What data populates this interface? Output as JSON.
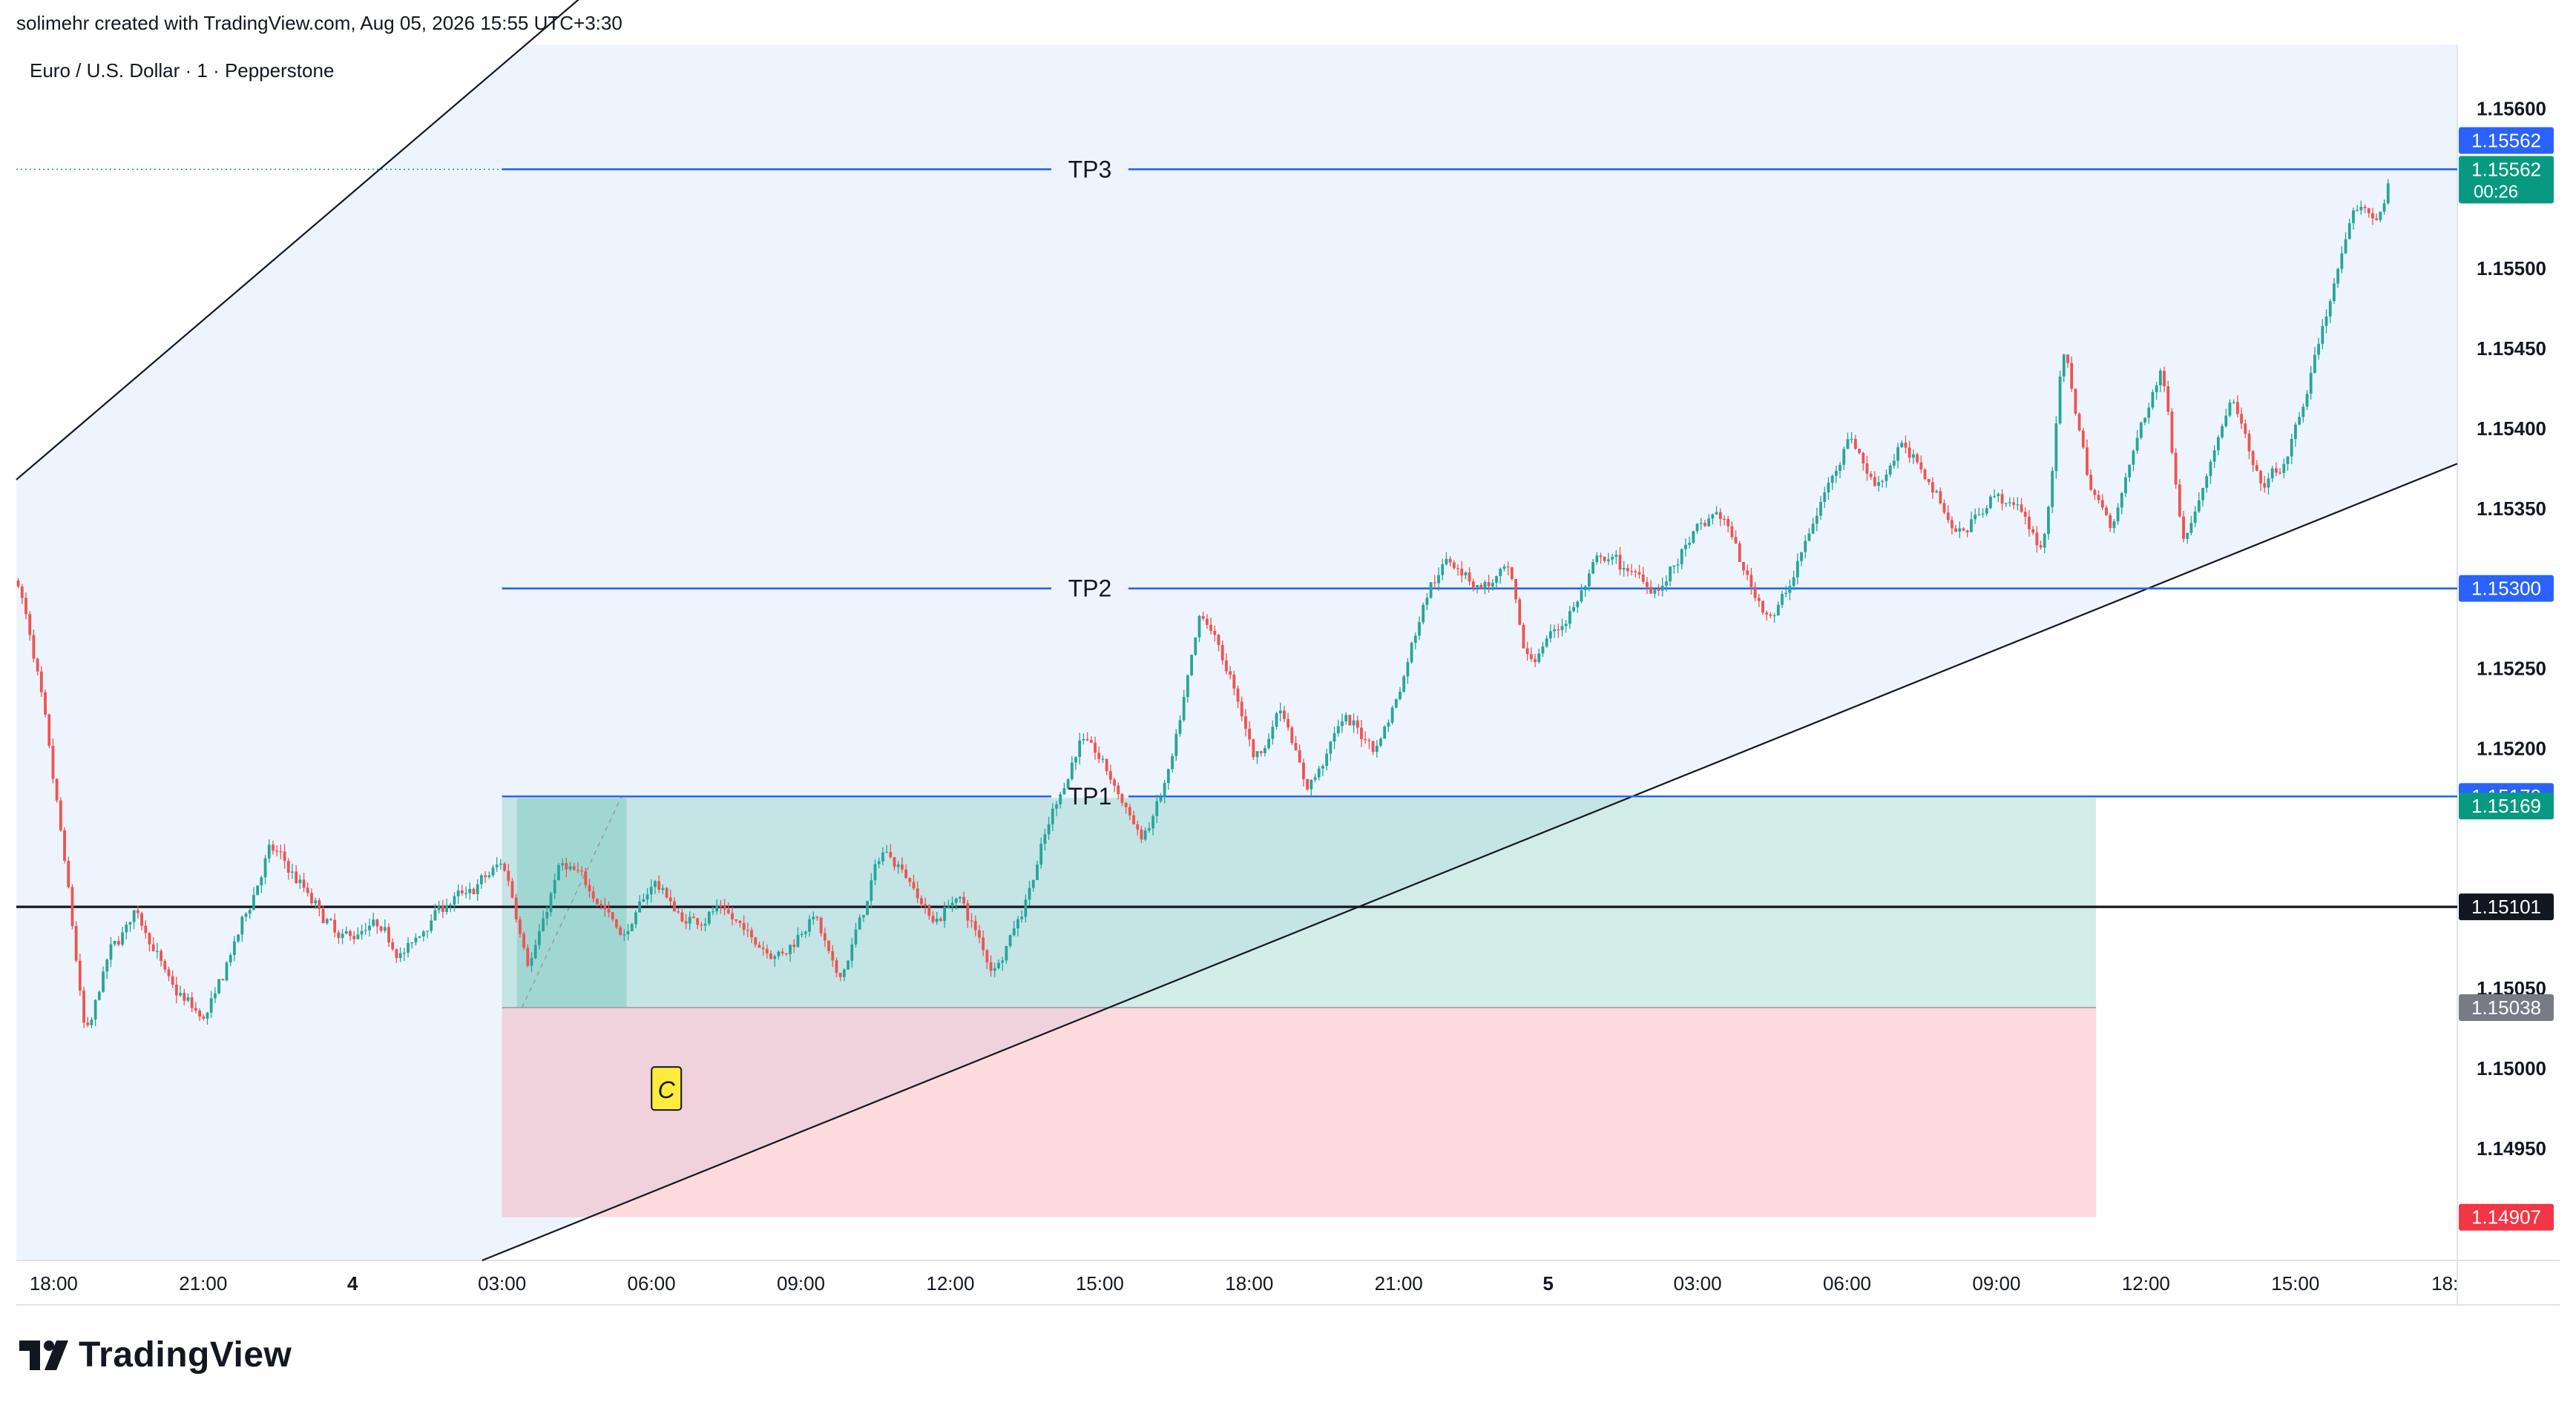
{
  "header": {
    "attribution": "solimehr created with TradingView.com, Aug 05, 2026 15:55 UTC+3:30"
  },
  "symbol": {
    "title": "Euro / U.S. Dollar · 1 · Pepperstone"
  },
  "brand": {
    "name": "TradingView",
    "logo_icon": "tradingview-logo-icon"
  },
  "colors": {
    "candle_up": "#26a69a",
    "candle_down": "#ef5350",
    "tp_line": "#2962ff",
    "stop_zone": "#f23645",
    "target_zone": "#089981",
    "channel_bg": "#eef4fd",
    "last_price": "#089981"
  },
  "chart_data": {
    "type": "candlestick",
    "symbol": "Euro / U.S. Dollar",
    "interval": "1",
    "broker": "Pepperstone",
    "ylim": [
      1.1488,
      1.1564
    ],
    "y_ticks": [
      "1.15600",
      "1.15500",
      "1.15450",
      "1.15400",
      "1.15350",
      "1.15250",
      "1.15200",
      "1.15050",
      "1.15000",
      "1.14950"
    ],
    "x_ticks": [
      "18:00",
      "21:00",
      "4",
      "03:00",
      "06:00",
      "09:00",
      "12:00",
      "15:00",
      "18:00",
      "21:00",
      "5",
      "03:00",
      "06:00",
      "09:00",
      "12:00",
      "15:00",
      "18:"
    ],
    "x_range_hours": [
      -0.75,
      48.25
    ],
    "price_path": [
      [
        -0.75,
        1.15305
      ],
      [
        -0.3,
        1.1523
      ],
      [
        0.2,
        1.1512
      ],
      [
        0.6,
        1.1501
      ],
      [
        1.0,
        1.1507
      ],
      [
        1.6,
        1.151
      ],
      [
        2.3,
        1.1505
      ],
      [
        3.0,
        1.1503
      ],
      [
        3.6,
        1.1508
      ],
      [
        4.3,
        1.1514
      ],
      [
        5.0,
        1.1511
      ],
      [
        5.7,
        1.1508
      ],
      [
        6.4,
        1.1509
      ],
      [
        7.0,
        1.1507
      ],
      [
        7.6,
        1.151
      ],
      [
        8.3,
        1.1511
      ],
      [
        9.0,
        1.1513
      ],
      [
        9.5,
        1.1506
      ],
      [
        10.1,
        1.1513
      ],
      [
        10.8,
        1.1511
      ],
      [
        11.4,
        1.1508
      ],
      [
        12.0,
        1.1512
      ],
      [
        12.6,
        1.1509
      ],
      [
        13.3,
        1.151
      ],
      [
        14.0,
        1.1508
      ],
      [
        14.6,
        1.1507
      ],
      [
        15.2,
        1.151
      ],
      [
        15.7,
        1.1505
      ],
      [
        16.1,
        1.1509
      ],
      [
        16.6,
        1.1514
      ],
      [
        17.1,
        1.1512
      ],
      [
        17.6,
        1.1509
      ],
      [
        18.1,
        1.1511
      ],
      [
        18.8,
        1.1506
      ],
      [
        19.4,
        1.151
      ],
      [
        20.0,
        1.1516
      ],
      [
        20.6,
        1.1521
      ],
      [
        21.2,
        1.1518
      ],
      [
        21.8,
        1.1514
      ],
      [
        22.4,
        1.1519
      ],
      [
        23.0,
        1.1529
      ],
      [
        23.6,
        1.1524
      ],
      [
        24.1,
        1.1519
      ],
      [
        24.6,
        1.1523
      ],
      [
        25.1,
        1.1517
      ],
      [
        25.8,
        1.1522
      ],
      [
        26.5,
        1.152
      ],
      [
        27.0,
        1.1524
      ],
      [
        27.5,
        1.153
      ],
      [
        28.0,
        1.1532
      ],
      [
        28.6,
        1.153
      ],
      [
        29.2,
        1.1531
      ],
      [
        29.5,
        1.1525
      ],
      [
        30.0,
        1.1527
      ],
      [
        30.5,
        1.1529
      ],
      [
        31.0,
        1.1532
      ],
      [
        31.6,
        1.1531
      ],
      [
        32.2,
        1.153
      ],
      [
        32.8,
        1.1533
      ],
      [
        33.4,
        1.1535
      ],
      [
        34.0,
        1.153
      ],
      [
        34.5,
        1.1528
      ],
      [
        35.0,
        1.1532
      ],
      [
        35.5,
        1.1536
      ],
      [
        36.0,
        1.154
      ],
      [
        36.5,
        1.1536
      ],
      [
        37.0,
        1.1539
      ],
      [
        37.6,
        1.1537
      ],
      [
        38.2,
        1.1533
      ],
      [
        38.8,
        1.1536
      ],
      [
        39.4,
        1.1535
      ],
      [
        39.9,
        1.1532
      ],
      [
        40.3,
        1.1546
      ],
      [
        40.8,
        1.1536
      ],
      [
        41.3,
        1.1534
      ],
      [
        41.8,
        1.154
      ],
      [
        42.3,
        1.1544
      ],
      [
        42.7,
        1.1532
      ],
      [
        43.2,
        1.1538
      ],
      [
        43.7,
        1.1542
      ],
      [
        44.2,
        1.1536
      ],
      [
        44.8,
        1.1538
      ],
      [
        45.3,
        1.1544
      ],
      [
        45.8,
        1.155
      ],
      [
        46.2,
        1.1554
      ],
      [
        46.6,
        1.1553
      ],
      [
        46.9,
        1.15562
      ]
    ],
    "horizontal_lines": [
      {
        "label": "TP3",
        "price": 1.15562,
        "price_label": "1.15562",
        "from_hour": 9.0
      },
      {
        "label": "TP2",
        "price": 1.153,
        "price_label": "1.15300",
        "from_hour": 9.0
      },
      {
        "label": "TP1",
        "price": 1.1517,
        "price_label": "1.15170",
        "from_hour": 9.0
      },
      {
        "label": "",
        "price": 1.15101,
        "price_label": "1.15101",
        "from_hour": -0.75
      }
    ],
    "position": {
      "type": "long",
      "entry": 1.15038,
      "entry_label": "1.15038",
      "target": 1.15169,
      "target_label": "1.15169",
      "stop": 1.14907,
      "stop_label": "1.14907",
      "from_hour": 9.0,
      "to_hour": 41.0
    },
    "last_price": {
      "value": 1.15562,
      "label": "1.15562",
      "countdown": "00:26"
    },
    "upper_channel": {
      "from": [
        -0.75,
        1.15368
      ],
      "to": [
        19.9,
        1.15917
      ]
    },
    "lower_channel": {
      "from": [
        8.6,
        1.1488
      ],
      "to": [
        48.25,
        1.15378
      ]
    },
    "marker": {
      "label": "C",
      "hour": 12.3,
      "price": 1.14987
    }
  }
}
